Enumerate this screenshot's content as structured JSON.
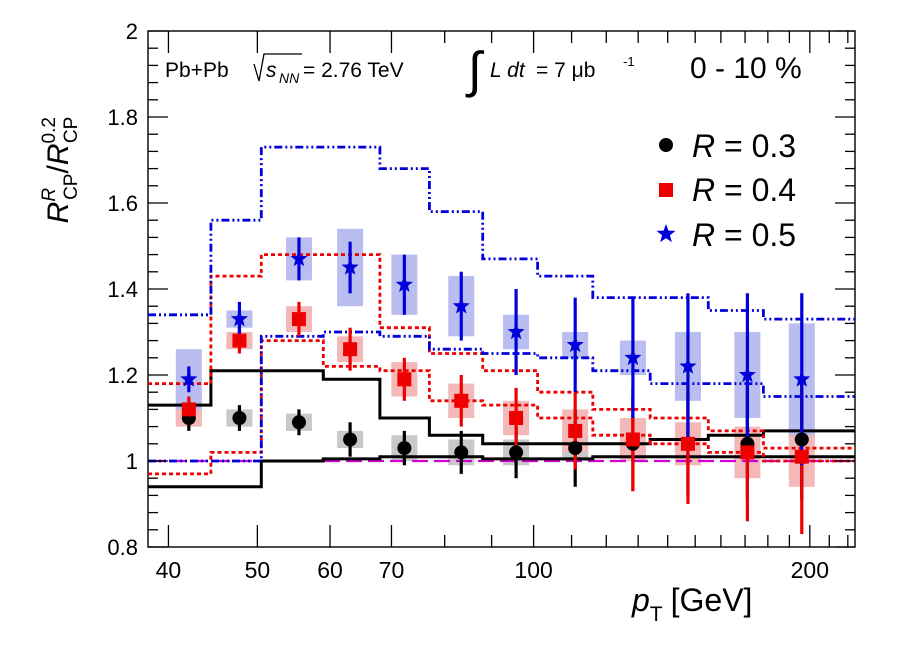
{
  "chart_data": {
    "type": "scatter",
    "x_scale": "log",
    "xlim": [
      38,
      224
    ],
    "ylim": [
      0.8,
      2.0
    ],
    "xlabel": "p",
    "xlabel_sub": "T",
    "xlabel_unit": "[GeV]",
    "ylabel_main": "R",
    "ylabel_sup_num": "R",
    "ylabel_sub_num": "CP",
    "ylabel_sep": "/",
    "ylabel_sup_den": "0.2",
    "ylabel_sub_den": "CP",
    "x_ticks": [
      40,
      50,
      60,
      70,
      100,
      200
    ],
    "x_tick_labels": [
      "40",
      "50",
      "60",
      "70",
      "100",
      "200"
    ],
    "y_ticks": [
      0.8,
      1.0,
      1.2,
      1.4,
      1.6,
      1.8,
      2.0
    ],
    "y_tick_labels": [
      "0.8",
      "1",
      "1.2",
      "1.4",
      "1.6",
      "1.8",
      "2"
    ],
    "annotations": {
      "system": "Pb+Pb",
      "sqrt": "s",
      "sqrt_sub": "NN",
      "energy": " = 2.76 TeV",
      "lumi_L": "L dt",
      "lumi_val": " = 7 μb",
      "lumi_exp": "-1",
      "centrality": "0 - 10 %"
    },
    "legend_position": "top-right",
    "reference_line": {
      "y": 1.0,
      "color": "#d400d4"
    },
    "series": [
      {
        "name": "R = 0.3",
        "legend_R": "R",
        "legend_val": " = 0.3",
        "marker": "circle",
        "color": "#000000",
        "sys_color": "#c8c8c8",
        "x": [
          42.1,
          47.8,
          55.5,
          63.1,
          72.3,
          83.4,
          95.7,
          111.0,
          128.3,
          147.3,
          171.0,
          196.0
        ],
        "y": [
          1.1,
          1.1,
          1.09,
          1.05,
          1.03,
          1.02,
          1.02,
          1.03,
          1.04,
          1.04,
          1.04,
          1.05
        ],
        "stat": [
          0.03,
          0.03,
          0.03,
          0.04,
          0.04,
          0.05,
          0.06,
          0.09,
          0.11,
          0.12,
          0.13,
          0.14
        ],
        "sys": [
          0.02,
          0.02,
          0.02,
          0.02,
          0.03,
          0.03,
          0.03,
          0.03,
          0.03,
          0.03,
          0.03,
          0.03
        ]
      },
      {
        "name": "R = 0.4",
        "legend_R": "R",
        "legend_val": " = 0.4",
        "marker": "square",
        "color": "#ee0000",
        "sys_color": "#f4b8b8",
        "x": [
          42.1,
          47.8,
          55.5,
          63.1,
          72.3,
          83.4,
          95.7,
          111.0,
          128.3,
          147.3,
          171.0,
          196.0
        ],
        "y": [
          1.12,
          1.28,
          1.33,
          1.26,
          1.19,
          1.14,
          1.1,
          1.07,
          1.05,
          1.04,
          1.02,
          1.01
        ],
        "stat": [
          0.03,
          0.03,
          0.04,
          0.05,
          0.05,
          0.06,
          0.07,
          0.09,
          0.12,
          0.14,
          0.16,
          0.18
        ],
        "sys": [
          0.04,
          0.02,
          0.03,
          0.03,
          0.04,
          0.04,
          0.04,
          0.05,
          0.05,
          0.05,
          0.06,
          0.07
        ]
      },
      {
        "name": "R = 0.5",
        "legend_R": "R",
        "legend_val": " = 0.5",
        "marker": "star",
        "color": "#0000dd",
        "sys_color": "#b9bdf0",
        "x": [
          42.1,
          47.8,
          55.5,
          63.1,
          72.3,
          83.4,
          95.7,
          111.0,
          128.3,
          147.3,
          171.0,
          196.0
        ],
        "y": [
          1.19,
          1.33,
          1.47,
          1.45,
          1.41,
          1.36,
          1.3,
          1.27,
          1.24,
          1.22,
          1.2,
          1.19
        ],
        "stat": [
          0.03,
          0.04,
          0.05,
          0.06,
          0.07,
          0.08,
          0.1,
          0.11,
          0.14,
          0.17,
          0.19,
          0.2
        ],
        "sys": [
          0.07,
          0.02,
          0.05,
          0.09,
          0.07,
          0.07,
          0.04,
          0.03,
          0.04,
          0.08,
          0.1,
          0.13
        ]
      }
    ],
    "bands": [
      {
        "name": "R = 0.3 theory",
        "color": "#000000",
        "style": "solid",
        "edges": [
          38,
          44.5,
          50.5,
          59,
          68,
          77,
          88,
          101,
          116,
          134,
          155,
          178,
          224
        ],
        "upper": [
          1.13,
          1.21,
          1.21,
          1.19,
          1.1,
          1.06,
          1.04,
          1.04,
          1.04,
          1.05,
          1.06,
          1.07
        ],
        "lower": [
          0.94,
          0.94,
          1.0,
          1.005,
          1.01,
          1.01,
          1.005,
          1.005,
          1.01,
          1.01,
          1.01,
          1.01
        ]
      },
      {
        "name": "R = 0.4 theory",
        "color": "#ee0000",
        "style": "dotted",
        "edges": [
          38,
          44.5,
          50.5,
          59,
          68,
          77,
          88,
          101,
          116,
          134,
          155,
          178,
          224
        ],
        "upper": [
          1.18,
          1.43,
          1.48,
          1.48,
          1.31,
          1.25,
          1.21,
          1.16,
          1.12,
          1.1,
          1.07,
          1.03
        ],
        "lower": [
          0.97,
          1.02,
          1.28,
          1.22,
          1.21,
          1.14,
          1.13,
          1.1,
          1.06,
          1.04,
          1.02,
          1.0
        ]
      },
      {
        "name": "R = 0.5 theory",
        "color": "#0000dd",
        "style": "dashdot",
        "edges": [
          38,
          44.5,
          50.5,
          59,
          68,
          77,
          88,
          101,
          116,
          134,
          155,
          178,
          224
        ],
        "upper": [
          1.34,
          1.56,
          1.73,
          1.73,
          1.68,
          1.58,
          1.47,
          1.43,
          1.38,
          1.38,
          1.35,
          1.33
        ],
        "lower": [
          1.0,
          1.0,
          1.29,
          1.3,
          1.29,
          1.26,
          1.25,
          1.24,
          1.21,
          1.18,
          1.18,
          1.15
        ]
      }
    ]
  }
}
